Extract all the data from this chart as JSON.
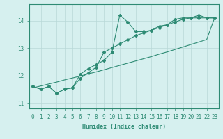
{
  "xlabel": "Humidex (Indice chaleur)",
  "x": [
    0,
    1,
    2,
    3,
    4,
    5,
    6,
    7,
    8,
    9,
    10,
    11,
    12,
    13,
    14,
    15,
    16,
    17,
    18,
    19,
    20,
    21,
    22,
    23
  ],
  "y_line1": [
    11.6,
    11.5,
    11.6,
    11.35,
    11.5,
    11.55,
    12.05,
    12.25,
    12.4,
    12.55,
    12.85,
    14.2,
    13.95,
    13.6,
    13.6,
    13.65,
    13.8,
    13.85,
    14.05,
    14.1,
    14.1,
    14.2,
    14.1,
    14.1
  ],
  "y_line2": [
    11.6,
    11.5,
    11.6,
    11.35,
    11.5,
    11.55,
    11.9,
    12.1,
    12.3,
    12.85,
    13.0,
    13.15,
    13.3,
    13.45,
    13.55,
    13.65,
    13.75,
    13.85,
    13.95,
    14.05,
    14.1,
    14.1,
    14.1,
    14.1
  ],
  "y_linear": [
    11.55,
    11.62,
    11.69,
    11.76,
    11.84,
    11.91,
    11.98,
    12.06,
    12.13,
    12.21,
    12.29,
    12.37,
    12.45,
    12.53,
    12.61,
    12.69,
    12.78,
    12.86,
    12.95,
    13.04,
    13.13,
    13.22,
    13.31,
    14.1
  ],
  "color": "#2e8b74",
  "bg_color": "#d6f0ef",
  "grid_color": "#b8d8d8",
  "ylim": [
    10.8,
    14.6
  ],
  "xlim": [
    -0.5,
    23.5
  ]
}
